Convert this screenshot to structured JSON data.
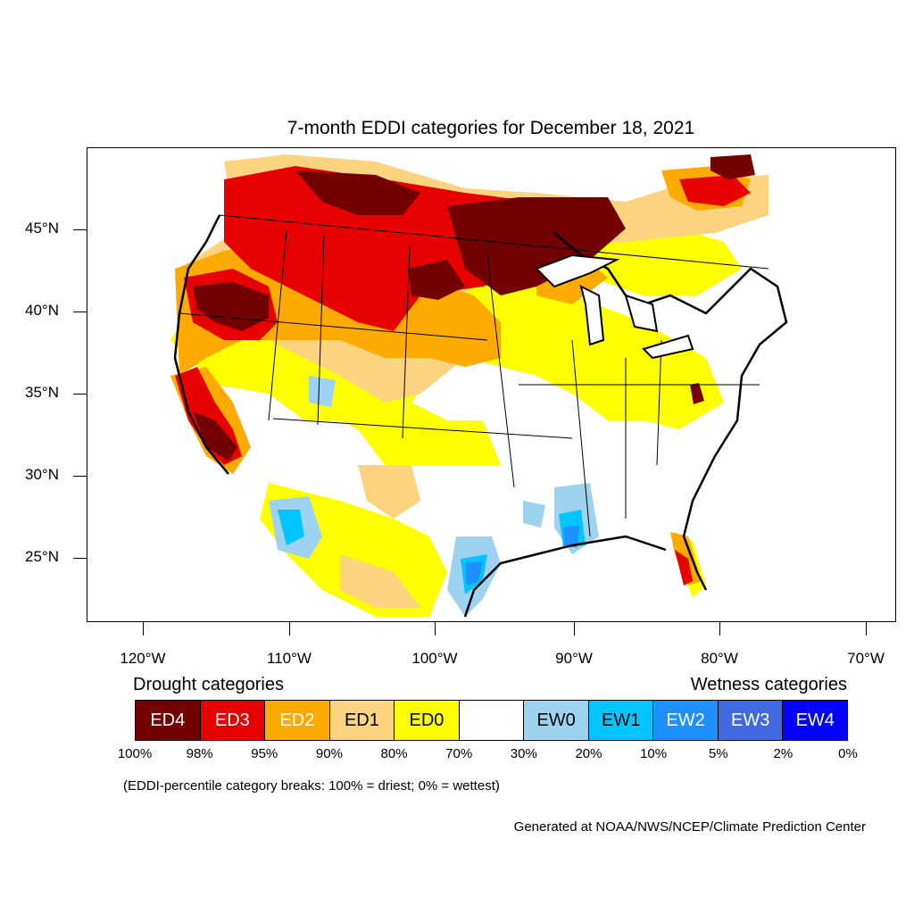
{
  "title": "7-month EDDI categories for December 18, 2021",
  "lat_ticks": [
    "45°N",
    "40°N",
    "35°N",
    "30°N",
    "25°N"
  ],
  "lon_ticks": [
    "120°W",
    "110°W",
    "100°W",
    "90°W",
    "80°W",
    "70°W"
  ],
  "legend": {
    "drought_heading": "Drought categories",
    "wetness_heading": "Wetness categories",
    "categories": [
      {
        "label": "ED4",
        "color": "#730000",
        "text_color": "#ffffff"
      },
      {
        "label": "ED3",
        "color": "#e60000",
        "text_color": "#ffffff"
      },
      {
        "label": "ED2",
        "color": "#ffaa00",
        "text_color": "#ffffff"
      },
      {
        "label": "ED1",
        "color": "#fcd37f",
        "text_color": "#000000"
      },
      {
        "label": "ED0",
        "color": "#ffff00",
        "text_color": "#000000"
      },
      {
        "label": "",
        "color": "#ffffff",
        "text_color": "#000000"
      },
      {
        "label": "EW0",
        "color": "#9dd3f0",
        "text_color": "#000000"
      },
      {
        "label": "EW1",
        "color": "#00c5ff",
        "text_color": "#000000"
      },
      {
        "label": "EW2",
        "color": "#1e90ff",
        "text_color": "#ffffff"
      },
      {
        "label": "EW3",
        "color": "#4169e1",
        "text_color": "#ffffff"
      },
      {
        "label": "EW4",
        "color": "#0000ff",
        "text_color": "#ffffff"
      }
    ],
    "percentiles": [
      "100%",
      "98%",
      "95%",
      "90%",
      "80%",
      "70%",
      "30%",
      "20%",
      "10%",
      "5%",
      "2%",
      "0%"
    ]
  },
  "note": "(EDDI-percentile category breaks: 100% = driest; 0% = wettest)",
  "credit": "Generated at NOAA/NWS/NCEP/Climate Prediction Center"
}
